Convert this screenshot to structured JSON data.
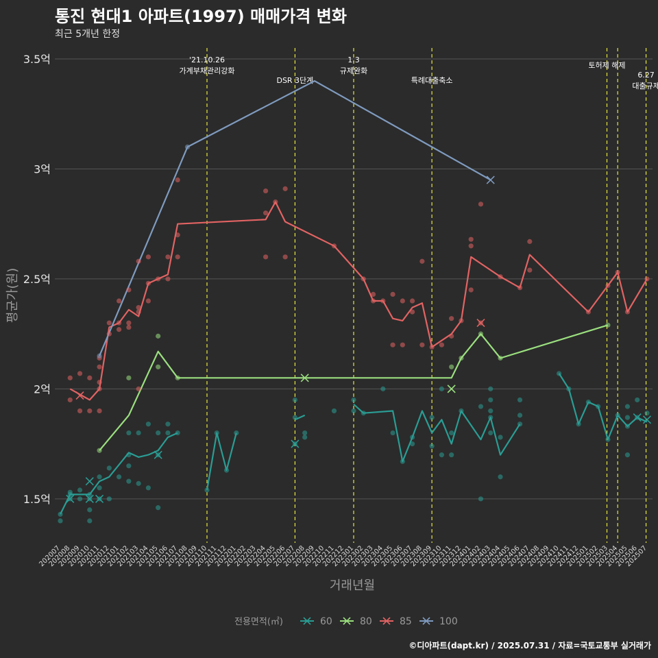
{
  "header": {
    "title": "통진 현대1 아파트(1997) 매매가격 변화",
    "subtitle": "최근 5개년 한정"
  },
  "caption": "©디아파트(dapt.kr) / 2025.07.31 / 자료=국토교통부 실거래가",
  "chart_data": {
    "type": "line",
    "ylabel": "평균가(원)",
    "xlabel": "거래년월",
    "ylim": [
      1.3,
      3.55
    ],
    "yticks": [
      1.5,
      2,
      2.5,
      3,
      3.5
    ],
    "ytick_labels": [
      "1.5억",
      "2억",
      "2.5억",
      "3억",
      "3.5억"
    ],
    "categories": [
      "202007",
      "202008",
      "202009",
      "202010",
      "202011",
      "202012",
      "202101",
      "202102",
      "202103",
      "202104",
      "202105",
      "202106",
      "202107",
      "202108",
      "202109",
      "202110",
      "202111",
      "202112",
      "202201",
      "202202",
      "202203",
      "202204",
      "202205",
      "202206",
      "202207",
      "202208",
      "202209",
      "202210",
      "202211",
      "202212",
      "202301",
      "202302",
      "202303",
      "202304",
      "202305",
      "202306",
      "202307",
      "202308",
      "202309",
      "202310",
      "202311",
      "202312",
      "202401",
      "202402",
      "202403",
      "202404",
      "202405",
      "202406",
      "202407",
      "202408",
      "202409",
      "202410",
      "202411",
      "202412",
      "202501",
      "202502",
      "202503",
      "202504",
      "202505",
      "202506",
      "202507"
    ],
    "legend": {
      "title": "전용면적(㎡)",
      "position": "bottom"
    },
    "colors": {
      "60": "#2a9d94",
      "80": "#9be07f",
      "85": "#e36363",
      "100": "#7f9bbf"
    },
    "series": [
      {
        "name": "60",
        "lines": [
          [
            [
              0,
              1.43
            ],
            [
              1,
              1.52
            ],
            [
              2,
              1.52
            ],
            [
              3,
              1.52
            ],
            [
              4,
              1.58
            ],
            [
              5,
              1.6
            ],
            [
              7,
              1.71
            ],
            [
              8,
              1.69
            ],
            [
              9,
              1.7
            ],
            [
              10,
              1.72
            ],
            [
              11,
              1.78
            ],
            [
              12,
              1.8
            ]
          ],
          [
            [
              15,
              1.54
            ],
            [
              16,
              1.8
            ],
            [
              17,
              1.63
            ],
            [
              18,
              1.8
            ]
          ],
          [
            [
              24,
              1.86
            ],
            [
              25,
              1.88
            ]
          ],
          [
            [
              30,
              1.93
            ],
            [
              31,
              1.89
            ],
            [
              34,
              1.9
            ],
            [
              35,
              1.67
            ],
            [
              36,
              1.78
            ],
            [
              37,
              1.9
            ],
            [
              38,
              1.8
            ],
            [
              39,
              1.86
            ],
            [
              40,
              1.75
            ],
            [
              41,
              1.9
            ],
            [
              43,
              1.77
            ],
            [
              44,
              1.87
            ],
            [
              45,
              1.7
            ],
            [
              47,
              1.84
            ]
          ],
          [
            [
              51,
              2.07
            ],
            [
              52,
              2.0
            ],
            [
              53,
              1.84
            ],
            [
              54,
              1.94
            ],
            [
              55,
              1.92
            ],
            [
              56,
              1.77
            ],
            [
              57,
              1.88
            ],
            [
              58,
              1.83
            ],
            [
              59,
              1.87
            ],
            [
              60,
              1.85
            ]
          ]
        ],
        "points": [
          [
            0,
            1.4
          ],
          [
            0,
            1.43
          ],
          [
            1,
            1.5
          ],
          [
            1,
            1.52
          ],
          [
            1,
            1.53
          ],
          [
            2,
            1.5
          ],
          [
            2,
            1.54
          ],
          [
            3,
            1.45
          ],
          [
            3,
            1.4
          ],
          [
            3,
            1.5
          ],
          [
            3,
            1.52
          ],
          [
            4,
            1.5
          ],
          [
            4,
            1.55
          ],
          [
            4,
            1.6
          ],
          [
            5,
            1.5
          ],
          [
            5,
            1.64
          ],
          [
            6,
            1.6
          ],
          [
            7,
            1.58
          ],
          [
            7,
            1.65
          ],
          [
            7,
            1.7
          ],
          [
            7,
            1.8
          ],
          [
            8,
            1.57
          ],
          [
            8,
            1.8
          ],
          [
            9,
            1.55
          ],
          [
            9,
            1.84
          ],
          [
            10,
            1.46
          ],
          [
            10,
            1.7
          ],
          [
            10,
            1.8
          ],
          [
            11,
            1.8
          ],
          [
            11,
            1.84
          ],
          [
            12,
            1.8
          ],
          [
            15,
            1.54
          ],
          [
            16,
            1.8
          ],
          [
            17,
            1.63
          ],
          [
            18,
            1.8
          ],
          [
            24,
            1.75
          ],
          [
            24,
            1.87
          ],
          [
            24,
            1.95
          ],
          [
            25,
            1.78
          ],
          [
            25,
            1.8
          ],
          [
            28,
            1.9
          ],
          [
            30,
            1.95
          ],
          [
            30,
            1.9
          ],
          [
            31,
            1.89
          ],
          [
            33,
            2.0
          ],
          [
            34,
            1.8
          ],
          [
            35,
            1.67
          ],
          [
            36,
            1.75
          ],
          [
            36,
            1.78
          ],
          [
            38,
            1.74
          ],
          [
            38,
            1.87
          ],
          [
            39,
            2.0
          ],
          [
            39,
            1.7
          ],
          [
            40,
            1.7
          ],
          [
            40,
            1.8
          ],
          [
            41,
            1.9
          ],
          [
            43,
            1.5
          ],
          [
            43,
            1.92
          ],
          [
            44,
            1.87
          ],
          [
            44,
            1.8
          ],
          [
            44,
            1.9
          ],
          [
            44,
            1.95
          ],
          [
            44,
            2.0
          ],
          [
            45,
            1.78
          ],
          [
            45,
            1.6
          ],
          [
            47,
            1.84
          ],
          [
            47,
            1.95
          ],
          [
            47,
            1.88
          ],
          [
            51,
            2.07
          ],
          [
            52,
            2.0
          ],
          [
            53,
            1.84
          ],
          [
            54,
            1.94
          ],
          [
            55,
            1.92
          ],
          [
            56,
            1.77
          ],
          [
            57,
            1.88
          ],
          [
            58,
            1.83
          ],
          [
            58,
            1.87
          ],
          [
            58,
            1.92
          ],
          [
            58,
            1.7
          ],
          [
            59,
            1.95
          ],
          [
            59,
            1.87
          ],
          [
            60,
            1.89
          ]
        ],
        "crosses": [
          [
            1,
            1.5
          ],
          [
            3,
            1.58
          ],
          [
            3,
            1.5
          ],
          [
            4,
            1.5
          ],
          [
            10,
            1.7
          ],
          [
            24,
            1.75
          ],
          [
            59,
            1.87
          ],
          [
            60,
            1.86
          ]
        ]
      },
      {
        "name": "80",
        "lines": [
          [
            [
              4,
              1.72
            ],
            [
              7,
              1.88
            ],
            [
              10,
              2.17
            ],
            [
              12,
              2.05
            ],
            [
              25,
              2.05
            ],
            [
              40,
              2.05
            ],
            [
              41,
              2.14
            ],
            [
              43,
              2.25
            ],
            [
              45,
              2.14
            ],
            [
              56,
              2.29
            ]
          ]
        ],
        "points": [
          [
            4,
            1.72
          ],
          [
            7,
            2.05
          ],
          [
            10,
            2.24
          ],
          [
            10,
            2.1
          ],
          [
            12,
            2.05
          ],
          [
            40,
            2.1
          ],
          [
            41,
            2.14
          ],
          [
            43,
            2.25
          ],
          [
            45,
            2.14
          ],
          [
            56,
            2.29
          ]
        ],
        "crosses": [
          [
            25,
            2.05
          ],
          [
            40,
            2.0
          ]
        ]
      },
      {
        "name": "85",
        "lines": [
          [
            [
              1,
              2.0
            ],
            [
              3,
              1.95
            ],
            [
              4,
              2.0
            ],
            [
              5,
              2.28
            ],
            [
              6,
              2.3
            ],
            [
              7,
              2.36
            ],
            [
              8,
              2.33
            ],
            [
              9,
              2.48
            ],
            [
              10,
              2.5
            ],
            [
              11,
              2.52
            ],
            [
              12,
              2.75
            ],
            [
              21,
              2.77
            ],
            [
              22,
              2.85
            ],
            [
              23,
              2.76
            ],
            [
              28,
              2.65
            ],
            [
              31,
              2.5
            ],
            [
              32,
              2.4
            ],
            [
              33,
              2.4
            ],
            [
              34,
              2.32
            ],
            [
              35,
              2.31
            ],
            [
              36,
              2.37
            ],
            [
              37,
              2.39
            ],
            [
              38,
              2.19
            ],
            [
              40,
              2.25
            ],
            [
              41,
              2.31
            ],
            [
              42,
              2.6
            ],
            [
              43,
              2.57
            ],
            [
              45,
              2.51
            ],
            [
              47,
              2.46
            ],
            [
              48,
              2.61
            ],
            [
              54,
              2.35
            ],
            [
              56,
              2.47
            ],
            [
              57,
              2.53
            ],
            [
              58,
              2.35
            ],
            [
              60,
              2.5
            ]
          ]
        ],
        "points": [
          [
            1,
            2.05
          ],
          [
            1,
            1.95
          ],
          [
            2,
            2.07
          ],
          [
            2,
            1.9
          ],
          [
            3,
            2.05
          ],
          [
            3,
            1.9
          ],
          [
            4,
            2.14
          ],
          [
            4,
            2.0
          ],
          [
            4,
            1.9
          ],
          [
            4,
            2.03
          ],
          [
            4,
            2.1
          ],
          [
            5,
            2.25
          ],
          [
            5,
            2.3
          ],
          [
            6,
            2.27
          ],
          [
            6,
            2.3
          ],
          [
            6,
            2.4
          ],
          [
            7,
            2.45
          ],
          [
            7,
            2.3
          ],
          [
            7,
            2.28
          ],
          [
            8,
            2.58
          ],
          [
            8,
            2.35
          ],
          [
            8,
            2.37
          ],
          [
            8,
            2.0
          ],
          [
            9,
            2.6
          ],
          [
            9,
            2.4
          ],
          [
            9,
            2.48
          ],
          [
            10,
            2.5
          ],
          [
            11,
            2.5
          ],
          [
            11,
            2.6
          ],
          [
            12,
            2.7
          ],
          [
            12,
            2.6
          ],
          [
            12,
            2.95
          ],
          [
            21,
            2.9
          ],
          [
            21,
            2.8
          ],
          [
            21,
            2.6
          ],
          [
            22,
            2.85
          ],
          [
            23,
            2.91
          ],
          [
            23,
            2.6
          ],
          [
            28,
            2.65
          ],
          [
            31,
            2.5
          ],
          [
            32,
            2.4
          ],
          [
            32,
            2.43
          ],
          [
            33,
            2.4
          ],
          [
            34,
            2.2
          ],
          [
            34,
            2.43
          ],
          [
            35,
            2.4
          ],
          [
            35,
            2.2
          ],
          [
            36,
            2.35
          ],
          [
            36,
            2.4
          ],
          [
            37,
            2.58
          ],
          [
            37,
            2.2
          ],
          [
            38,
            2.19
          ],
          [
            39,
            2.2
          ],
          [
            40,
            2.32
          ],
          [
            40,
            2.24
          ],
          [
            41,
            2.31
          ],
          [
            42,
            2.68
          ],
          [
            42,
            2.45
          ],
          [
            42,
            2.65
          ],
          [
            43,
            2.84
          ],
          [
            43,
            2.3
          ],
          [
            45,
            2.51
          ],
          [
            47,
            2.46
          ],
          [
            48,
            2.67
          ],
          [
            48,
            2.54
          ],
          [
            54,
            2.35
          ],
          [
            56,
            2.47
          ],
          [
            57,
            2.53
          ],
          [
            58,
            2.35
          ],
          [
            60,
            2.5
          ]
        ],
        "crosses": [
          [
            2,
            1.97
          ],
          [
            43,
            2.3
          ]
        ]
      },
      {
        "name": "100",
        "lines": [
          [
            [
              4,
              2.15
            ],
            [
              13,
              3.1
            ],
            [
              26,
              3.4
            ],
            [
              44,
              2.95
            ]
          ]
        ],
        "points": [
          [
            4,
            2.15
          ],
          [
            13,
            3.1
          ]
        ],
        "crosses": [
          [
            44,
            2.95
          ]
        ]
      }
    ],
    "events": [
      {
        "x": 15.0,
        "lines": [
          "'21.10.26",
          "가계부채관리강화"
        ]
      },
      {
        "x": 24.0,
        "lines": [
          "DSR 3단계"
        ]
      },
      {
        "x": 30.0,
        "lines": [
          "1.3",
          "규제완화"
        ]
      },
      {
        "x": 38.0,
        "lines": [
          "특례대출축소"
        ]
      },
      {
        "x": 55.9,
        "lines": [
          "토허제 해제"
        ]
      },
      {
        "x": 57.0,
        "lines": []
      },
      {
        "x": 59.9,
        "lines": [
          "6.27",
          "대출규제"
        ]
      }
    ]
  }
}
